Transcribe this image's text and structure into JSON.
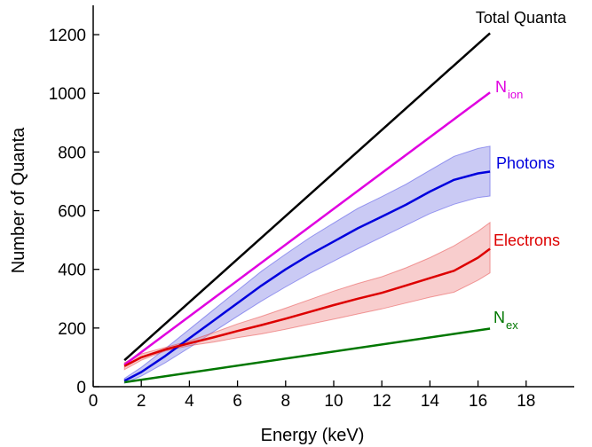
{
  "chart_data": {
    "type": "line",
    "xlabel": "Energy (keV)",
    "ylabel": "Number of Quanta",
    "xlim": [
      0,
      20
    ],
    "ylim": [
      0,
      1300
    ],
    "xticks": [
      0,
      2,
      4,
      6,
      8,
      10,
      12,
      14,
      16,
      18
    ],
    "yticks": [
      0,
      200,
      400,
      600,
      800,
      1000,
      1200
    ],
    "grid": false,
    "series": [
      {
        "key": "total",
        "name": "Total Quanta",
        "color": "#000000",
        "x": [
          1.3,
          16.5
        ],
        "y": [
          90,
          1205
        ]
      },
      {
        "key": "nion",
        "name": "N",
        "subscript": "ion",
        "color": "#e000e0",
        "x": [
          1.3,
          16.5
        ],
        "y": [
          75,
          1003
        ]
      },
      {
        "key": "photons",
        "name": "Photons",
        "color": "#0000dd",
        "band_color": "#8a8ae6",
        "x": [
          1.3,
          2,
          3,
          4,
          5,
          6,
          7,
          8,
          9,
          10,
          11,
          12,
          13,
          14,
          15,
          16,
          16.5
        ],
        "y": [
          20,
          50,
          105,
          165,
          225,
          285,
          345,
          400,
          450,
          495,
          540,
          580,
          620,
          665,
          705,
          727,
          733
        ],
        "y_low": [
          12,
          36,
          82,
          133,
          187,
          240,
          292,
          340,
          386,
          428,
          470,
          510,
          550,
          590,
          622,
          645,
          650
        ],
        "y_high": [
          28,
          66,
          130,
          196,
          262,
          328,
          394,
          452,
          508,
          558,
          608,
          648,
          690,
          738,
          785,
          812,
          820
        ]
      },
      {
        "key": "electrons",
        "name": "Electrons",
        "color": "#dd0000",
        "band_color": "#f09090",
        "x": [
          1.3,
          2,
          3,
          4,
          5,
          6,
          7,
          8,
          9,
          10,
          11,
          12,
          13,
          14,
          15,
          16,
          16.5
        ],
        "y": [
          70,
          100,
          127,
          148,
          168,
          190,
          210,
          232,
          255,
          278,
          300,
          320,
          345,
          370,
          395,
          440,
          470
        ],
        "y_low": [
          58,
          90,
          122,
          140,
          152,
          167,
          180,
          196,
          213,
          230,
          248,
          265,
          285,
          305,
          322,
          363,
          388
        ],
        "y_high": [
          82,
          112,
          134,
          156,
          184,
          214,
          240,
          268,
          297,
          326,
          352,
          375,
          405,
          440,
          480,
          530,
          560
        ]
      },
      {
        "key": "nex",
        "name": "N",
        "subscript": "ex",
        "color": "#007700",
        "x": [
          1.3,
          16.5
        ],
        "y": [
          15,
          198
        ]
      }
    ]
  }
}
